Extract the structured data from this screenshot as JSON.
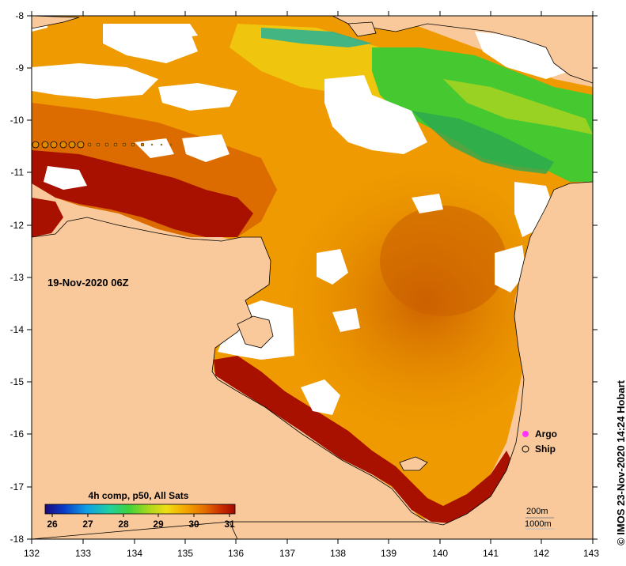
{
  "map": {
    "timestamp_label": "19-Nov-2020 06Z",
    "x_ticks": [
      "132",
      "133",
      "134",
      "135",
      "136",
      "137",
      "138",
      "139",
      "140",
      "141",
      "142",
      "143"
    ],
    "y_ticks": [
      "-8",
      "-9",
      "-10",
      "-11",
      "-12",
      "-13",
      "-14",
      "-15",
      "-16",
      "-17",
      "-18"
    ],
    "x_range": [
      132,
      143
    ],
    "y_range": [
      -18,
      -8
    ],
    "colors": {
      "land": "#f9c89b",
      "no_data": "#ffffff",
      "coast": "#000000"
    }
  },
  "colorbar": {
    "title": "4h comp, p50, All Sats",
    "ticks": [
      "26",
      "27",
      "28",
      "29",
      "30",
      "31"
    ],
    "range": [
      26,
      31
    ],
    "colors": [
      "#1a0a7a",
      "#0a3cc8",
      "#10a0e6",
      "#20d0a0",
      "#3ed23c",
      "#a6d81e",
      "#f0dc14",
      "#f4a600",
      "#e46e00",
      "#c82a00",
      "#a00a00"
    ]
  },
  "legend": {
    "items": [
      {
        "label": "Argo",
        "symbol": "magenta-circle",
        "color": "#ff33ff"
      },
      {
        "label": "Ship",
        "symbol": "open-circle",
        "color": "#000000"
      }
    ]
  },
  "isobaths": {
    "labels": [
      "200m",
      "1000m"
    ]
  },
  "credit": "© IMOS 23-Nov-2020 14:24 Hobart"
}
